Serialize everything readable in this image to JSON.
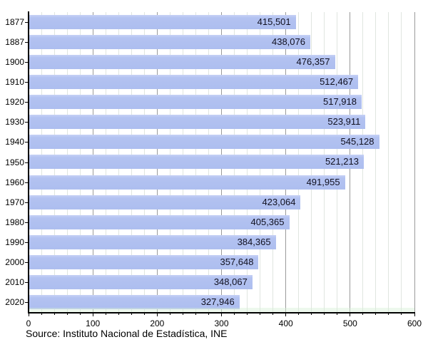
{
  "chart_data": {
    "type": "bar",
    "orientation": "horizontal",
    "title": "",
    "xlabel": "",
    "ylabel": "",
    "categories": [
      "1877",
      "1887",
      "1900",
      "1910",
      "1920",
      "1930",
      "1940",
      "1950",
      "1960",
      "1970",
      "1980",
      "1990",
      "2000",
      "2010",
      "2020"
    ],
    "values": [
      415501,
      438076,
      476357,
      512467,
      517918,
      523911,
      545128,
      521213,
      491955,
      423064,
      405365,
      384365,
      357648,
      348067,
      327946
    ],
    "value_labels": [
      "415,501",
      "438,076",
      "476,357",
      "512,467",
      "517,918",
      "523,911",
      "545,128",
      "521,213",
      "491,955",
      "423,064",
      "405,365",
      "384,365",
      "357,648",
      "348,067",
      "327,946"
    ],
    "xlim": [
      0,
      600
    ],
    "x_major_ticks": [
      0,
      100,
      200,
      300,
      400,
      500,
      600
    ],
    "x_minor_step": 20,
    "axis_value_divisor": 1000,
    "grid": "on",
    "legend": "none",
    "source_note": "Source: Instituto Nacional de Estadística, INE",
    "colors": {
      "bar_top": "#c6d1f6",
      "bar_mid": "#b3c2f1",
      "bar_bottom": "#adbeef",
      "minor_grid": "#e0e5e0",
      "major_grid": "#9a9a9a",
      "axis": "#000000",
      "value_text": "#101020",
      "label_text": "#000000"
    }
  }
}
